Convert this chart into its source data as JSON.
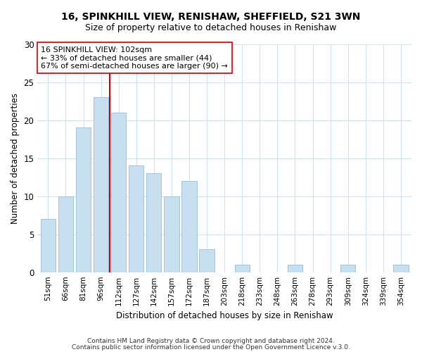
{
  "title1": "16, SPINKHILL VIEW, RENISHAW, SHEFFIELD, S21 3WN",
  "title2": "Size of property relative to detached houses in Renishaw",
  "xlabel": "Distribution of detached houses by size in Renishaw",
  "ylabel": "Number of detached properties",
  "bar_labels": [
    "51sqm",
    "66sqm",
    "81sqm",
    "96sqm",
    "112sqm",
    "127sqm",
    "142sqm",
    "157sqm",
    "172sqm",
    "187sqm",
    "203sqm",
    "218sqm",
    "233sqm",
    "248sqm",
    "263sqm",
    "278sqm",
    "293sqm",
    "309sqm",
    "324sqm",
    "339sqm",
    "354sqm"
  ],
  "bar_values": [
    7,
    10,
    19,
    23,
    21,
    14,
    13,
    10,
    12,
    3,
    0,
    1,
    0,
    0,
    1,
    0,
    0,
    1,
    0,
    0,
    1
  ],
  "bar_color": "#c8dff0",
  "bar_edge_color": "#a0c4e0",
  "vline_index": 3,
  "marker_label": "16 SPINKHILL VIEW: 102sqm",
  "annotation_line1": "← 33% of detached houses are smaller (44)",
  "annotation_line2": "67% of semi-detached houses are larger (90) →",
  "vline_color": "#cc0000",
  "ylim": [
    0,
    30
  ],
  "yticks": [
    0,
    5,
    10,
    15,
    20,
    25,
    30
  ],
  "footer1": "Contains HM Land Registry data © Crown copyright and database right 2024.",
  "footer2": "Contains public sector information licensed under the Open Government Licence v.3.0.",
  "box_color": "#cc0000",
  "fig_bg": "#ffffff",
  "grid_color": "#d0e4f0"
}
